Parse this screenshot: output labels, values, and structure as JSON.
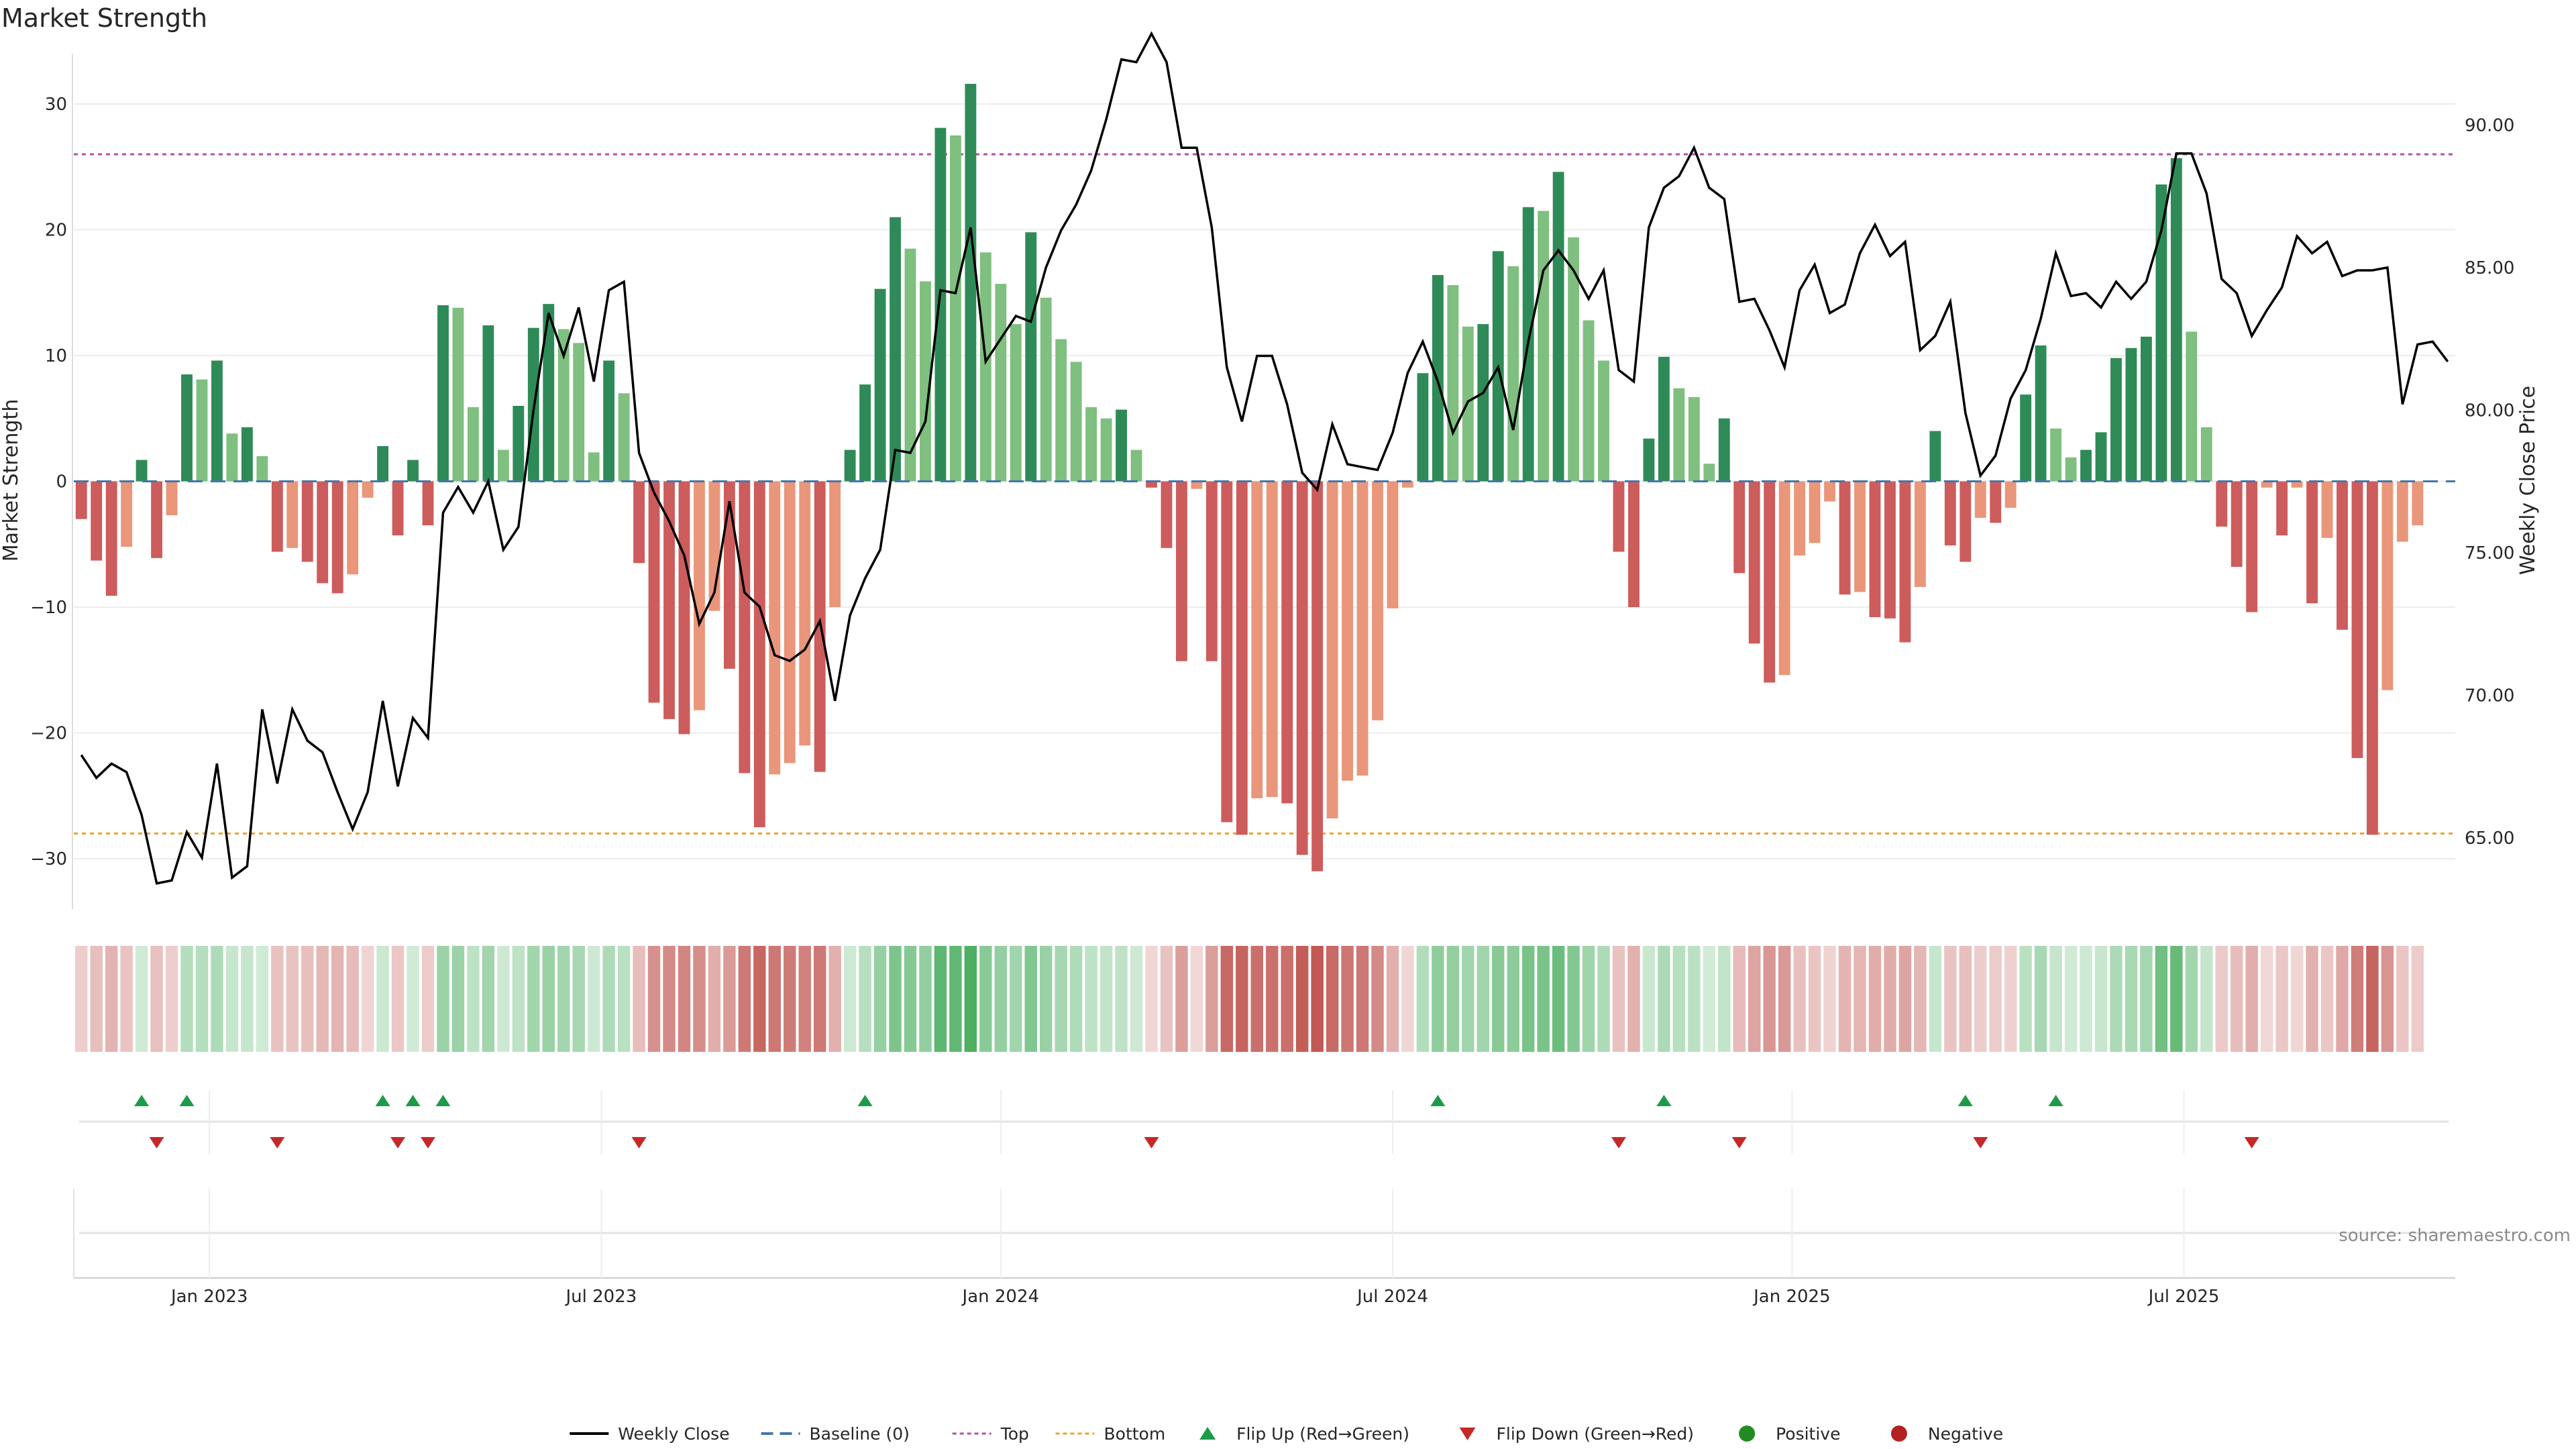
{
  "chart_data": {
    "type": "bar+line",
    "title": "Market Strength",
    "ylabel_left": "Market Strength",
    "ylabel_right": "Weekly Close Price",
    "ylim_left": [
      -34,
      34
    ],
    "ylim_right": [
      62.5,
      92.5
    ],
    "yticks_left": [
      30,
      20,
      10,
      0,
      -10,
      -20,
      -30
    ],
    "ytick_labels_left": [
      "30",
      "20",
      "10",
      "0",
      "−10",
      "−20",
      "−30"
    ],
    "yticks_right": [
      90,
      85,
      80,
      75,
      70,
      65
    ],
    "ytick_labels_right": [
      "90.00",
      "85.00",
      "80.00",
      "75.00",
      "70.00",
      "65.00"
    ],
    "x_range_weeks": [
      -0.5,
      157.5
    ],
    "xticks": [
      {
        "week": 8.5,
        "label": "Jan 2023"
      },
      {
        "week": 34.5,
        "label": "Jul 2023"
      },
      {
        "week": 61,
        "label": "Jan 2024"
      },
      {
        "week": 87,
        "label": "Jul 2024"
      },
      {
        "week": 113.5,
        "label": "Jan 2025"
      },
      {
        "week": 139.5,
        "label": "Jul 2025"
      }
    ],
    "top_level": 26,
    "bottom_level": -28,
    "strength": [
      -3,
      -6.3,
      -9.1,
      -5.2,
      1.7,
      -6.1,
      -2.7,
      8.5,
      8.1,
      9.6,
      3.8,
      4.3,
      2,
      -5.6,
      -5.3,
      -6.4,
      -8.1,
      -8.9,
      -7.4,
      -1.3,
      2.8,
      -4.3,
      1.7,
      -3.5,
      14,
      13.8,
      5.9,
      12.4,
      2.5,
      6,
      12.2,
      14.1,
      12.1,
      11,
      2.3,
      9.6,
      7,
      -6.5,
      -17.6,
      -18.9,
      -20.1,
      -18.2,
      -10.3,
      -14.9,
      -23.2,
      -27.5,
      -23.3,
      -22.4,
      -21,
      -23.1,
      -10,
      2.5,
      7.7,
      15.3,
      21,
      18.5,
      15.9,
      28.1,
      27.5,
      31.6,
      18.2,
      15.7,
      12.5,
      19.8,
      14.6,
      11.3,
      9.5,
      5.9,
      5,
      5.7,
      2.5,
      -0.5,
      -5.3,
      -14.3,
      -0.6,
      -14.3,
      -27.1,
      -28.1,
      -25.2,
      -25.1,
      -25.6,
      -29.7,
      -31,
      -26.8,
      -23.8,
      -23.4,
      -19,
      -10.1,
      -0.5,
      8.6,
      16.4,
      15.6,
      12.3,
      12.5,
      18.3,
      17.1,
      21.8,
      21.5,
      24.6,
      19.4,
      12.8,
      9.6,
      -5.6,
      -10,
      3.4,
      9.9,
      7.4,
      6.7,
      1.4,
      5,
      -7.3,
      -12.9,
      -16,
      -15.4,
      -5.9,
      -4.9,
      -1.6,
      -9,
      -8.8,
      -10.8,
      -10.9,
      -12.8,
      -8.4,
      4,
      -5.1,
      -6.4,
      -2.9,
      -3.3,
      -2.1,
      6.9,
      10.8,
      4.2,
      1.9,
      2.5,
      3.9,
      9.8,
      10.6,
      11.5,
      23.6,
      25.7,
      11.9,
      4.3,
      -3.6,
      -6.8,
      -10.4,
      -0.5,
      -4.3,
      -0.5,
      -9.7,
      -4.5,
      -11.8,
      -22,
      -28.1,
      -16.6,
      -4.8,
      -3.5
    ],
    "price": [
      67.9,
      67.1,
      67.6,
      67.3,
      65.8,
      63.4,
      63.5,
      65.2,
      64.3,
      67.6,
      63.6,
      64,
      69.5,
      66.9,
      69.5,
      68.4,
      68,
      66.6,
      65.3,
      66.6,
      69.8,
      66.8,
      69.2,
      68.5,
      76.4,
      77.3,
      76.4,
      77.5,
      75.1,
      75.9,
      80,
      83.4,
      81.9,
      83.6,
      81,
      84.2,
      84.5,
      78.5,
      77.1,
      76.1,
      74.9,
      72.5,
      73.6,
      76.8,
      73.6,
      73.1,
      71.4,
      71.2,
      71.6,
      72.6,
      69.8,
      72.8,
      74.1,
      75.1,
      78.6,
      78.5,
      79.6,
      84.2,
      84.1,
      86.4,
      81.7,
      82.5,
      83.3,
      83.1,
      85,
      86.3,
      87.2,
      88.4,
      90.2,
      92.3,
      92.2,
      93.2,
      92.2,
      89.2,
      89.2,
      86.4,
      81.5,
      79.6,
      81.9,
      81.9,
      80.2,
      77.8,
      77.2,
      79.5,
      78.1,
      78,
      77.9,
      79.2,
      81.3,
      82.4,
      81,
      79.2,
      80.3,
      80.6,
      81.5,
      79.3,
      82.4,
      84.9,
      85.6,
      84.9,
      83.9,
      84.9,
      81.4,
      81,
      86.4,
      87.8,
      88.2,
      89.2,
      87.8,
      87.4,
      83.8,
      83.9,
      82.8,
      81.5,
      84.2,
      85.1,
      83.4,
      83.7,
      85.5,
      86.5,
      85.4,
      85.9,
      82.1,
      82.6,
      83.8,
      79.9,
      77.7,
      78.4,
      80.4,
      81.4,
      83.2,
      85.5,
      84,
      84.1,
      83.6,
      84.5,
      83.9,
      84.5,
      86.3,
      89,
      89,
      87.6,
      84.6,
      84.1,
      82.6,
      83.5,
      84.3,
      86.1,
      85.5,
      85.9,
      84.7,
      84.9,
      84.9,
      85,
      80.2,
      82.3,
      82.4,
      81.7
    ],
    "flip_up_weeks": [
      4,
      7,
      20,
      22,
      24,
      52,
      90,
      105,
      125,
      131
    ],
    "flip_down_weeks": [
      5,
      13,
      21,
      23,
      37,
      71,
      102,
      110,
      126,
      144
    ],
    "colors": {
      "strong_positive": "#2e8b57",
      "weak_positive": "#7fbf7f",
      "strong_negative": "#cd5c5c",
      "weak_negative": "#e9967a",
      "price_line": "#000000",
      "baseline": "#4477aa",
      "top_line": "#b34fa8",
      "bottom_line": "#f0a030",
      "flip_up": "#1f9a4a",
      "flip_down": "#c62828",
      "positive_dot": "#228b22",
      "negative_dot": "#b22222",
      "heat_positive": "#4caf61",
      "heat_negative": "#c0544f"
    },
    "legend": [
      {
        "key": "line",
        "label": "Weekly Close"
      },
      {
        "key": "baseline",
        "label": "Baseline (0)"
      },
      {
        "key": "top",
        "label": "Top"
      },
      {
        "key": "bottom",
        "label": "Bottom"
      },
      {
        "key": "flipup",
        "label": "Flip Up (Red→Green)"
      },
      {
        "key": "flipdown",
        "label": "Flip Down (Green→Red)"
      },
      {
        "key": "pos",
        "label": "Positive"
      },
      {
        "key": "neg",
        "label": "Negative"
      }
    ]
  },
  "source_text": "source: sharemaestro.com"
}
